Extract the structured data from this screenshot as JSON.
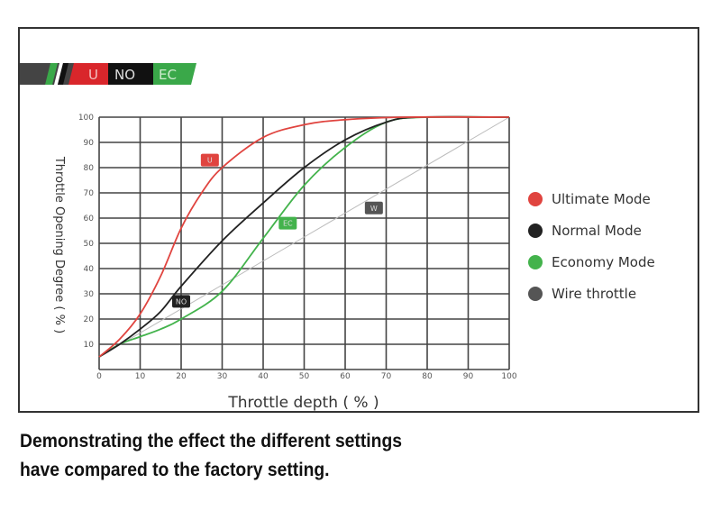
{
  "logo": {
    "segments": [
      "U",
      "NO",
      "EC"
    ],
    "colors": {
      "u": "#d9262b",
      "no": "#111111",
      "ec": "#3aa849"
    }
  },
  "chart_data": {
    "type": "line",
    "xlabel": "Throttle depth ( % )",
    "ylabel": "Throttle Opening Degree ( % )",
    "xlim": [
      0,
      100
    ],
    "ylim": [
      0,
      100
    ],
    "xticks": [
      0,
      10,
      20,
      30,
      40,
      50,
      60,
      70,
      80,
      90,
      100
    ],
    "yticks": [
      10,
      20,
      30,
      40,
      50,
      60,
      70,
      80,
      90,
      100
    ],
    "grid": true,
    "legend_placement": "right",
    "series": [
      {
        "name": "Ultimate Mode",
        "tag": "U",
        "color": "#e0443f",
        "label_at": [
          27,
          83
        ],
        "x": [
          0,
          5,
          10,
          15,
          20,
          25,
          30,
          40,
          50,
          60,
          75,
          100
        ],
        "y": [
          5,
          12,
          22,
          37,
          56,
          70,
          80,
          92,
          97,
          99,
          100,
          100
        ]
      },
      {
        "name": "Normal Mode",
        "tag": "NO",
        "color": "#222222",
        "label_at": [
          20,
          27
        ],
        "x": [
          0,
          5,
          10,
          15,
          20,
          30,
          40,
          50,
          60,
          70,
          78,
          100
        ],
        "y": [
          5,
          10,
          16,
          23,
          33,
          51,
          66,
          80,
          91,
          98,
          100,
          100
        ]
      },
      {
        "name": "Economy Mode",
        "tag": "EC",
        "color": "#43b34c",
        "label_at": [
          46,
          58
        ],
        "x": [
          0,
          5,
          10,
          15,
          20,
          30,
          40,
          50,
          60,
          70,
          80,
          100
        ],
        "y": [
          5,
          10,
          13,
          16,
          20,
          31,
          52,
          73,
          88,
          98,
          100,
          100
        ]
      },
      {
        "name": "Wire throttle",
        "tag": "W",
        "color": "#bbbbbb",
        "label_at": [
          67,
          64
        ],
        "x": [
          0,
          100
        ],
        "y": [
          5,
          100
        ]
      }
    ]
  },
  "caption": {
    "line1": "Demonstrating the effect the different settings",
    "line2": "have compared to the factory setting."
  }
}
